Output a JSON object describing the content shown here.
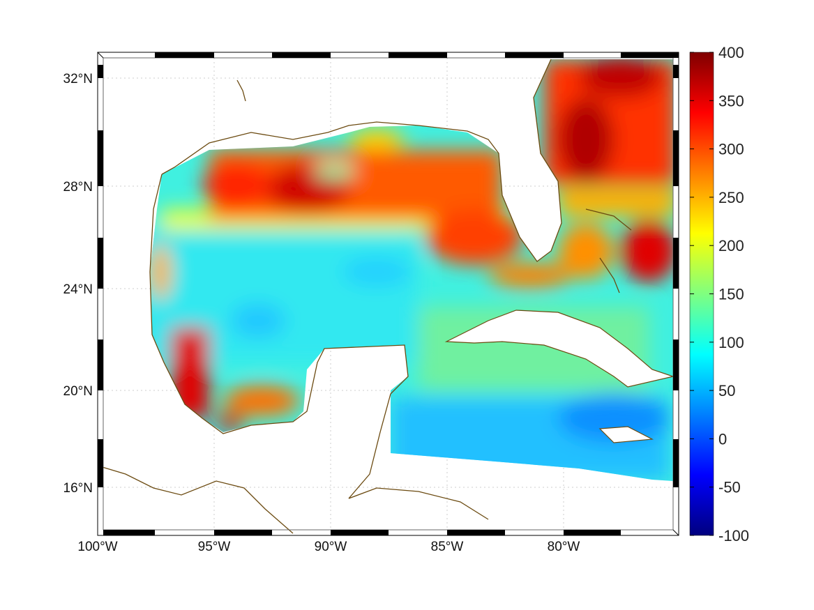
{
  "chart_data": {
    "type": "heatmap",
    "title": "",
    "projection": "mercator",
    "region": "Gulf of Mexico / Caribbean",
    "lon_range": [
      -100,
      -75
    ],
    "lat_range": [
      14.3,
      33
    ],
    "x_ticks": [
      "100°W",
      "95°W",
      "90°W",
      "85°W",
      "80°W"
    ],
    "x_tick_values": [
      -100,
      -95,
      -90,
      -85,
      -80
    ],
    "y_ticks": [
      "32°N",
      "28°N",
      "24°N",
      "20°N",
      "16°N"
    ],
    "y_tick_values": [
      32,
      28,
      24,
      20,
      16
    ],
    "grid": true,
    "colormap": "jet",
    "colorbar": {
      "range": [
        -100,
        400
      ],
      "ticks": [
        "400",
        "350",
        "300",
        "250",
        "200",
        "150",
        "100",
        "50",
        "0",
        "-50",
        "-100"
      ],
      "tick_values": [
        400,
        350,
        300,
        250,
        200,
        150,
        100,
        50,
        0,
        -50,
        -100
      ],
      "placement": "right"
    },
    "field_regions": [
      {
        "name": "northern gulf shelf",
        "value": 310
      },
      {
        "name": "central gulf",
        "value": 100
      },
      {
        "name": "atlantic off florida",
        "value": 340
      },
      {
        "name": "western gulf mexico coast",
        "value": 340
      },
      {
        "name": "bay of campeche",
        "value": 270
      },
      {
        "name": "caribbean south",
        "value": 60
      },
      {
        "name": "south of cuba",
        "value": 150
      }
    ]
  }
}
